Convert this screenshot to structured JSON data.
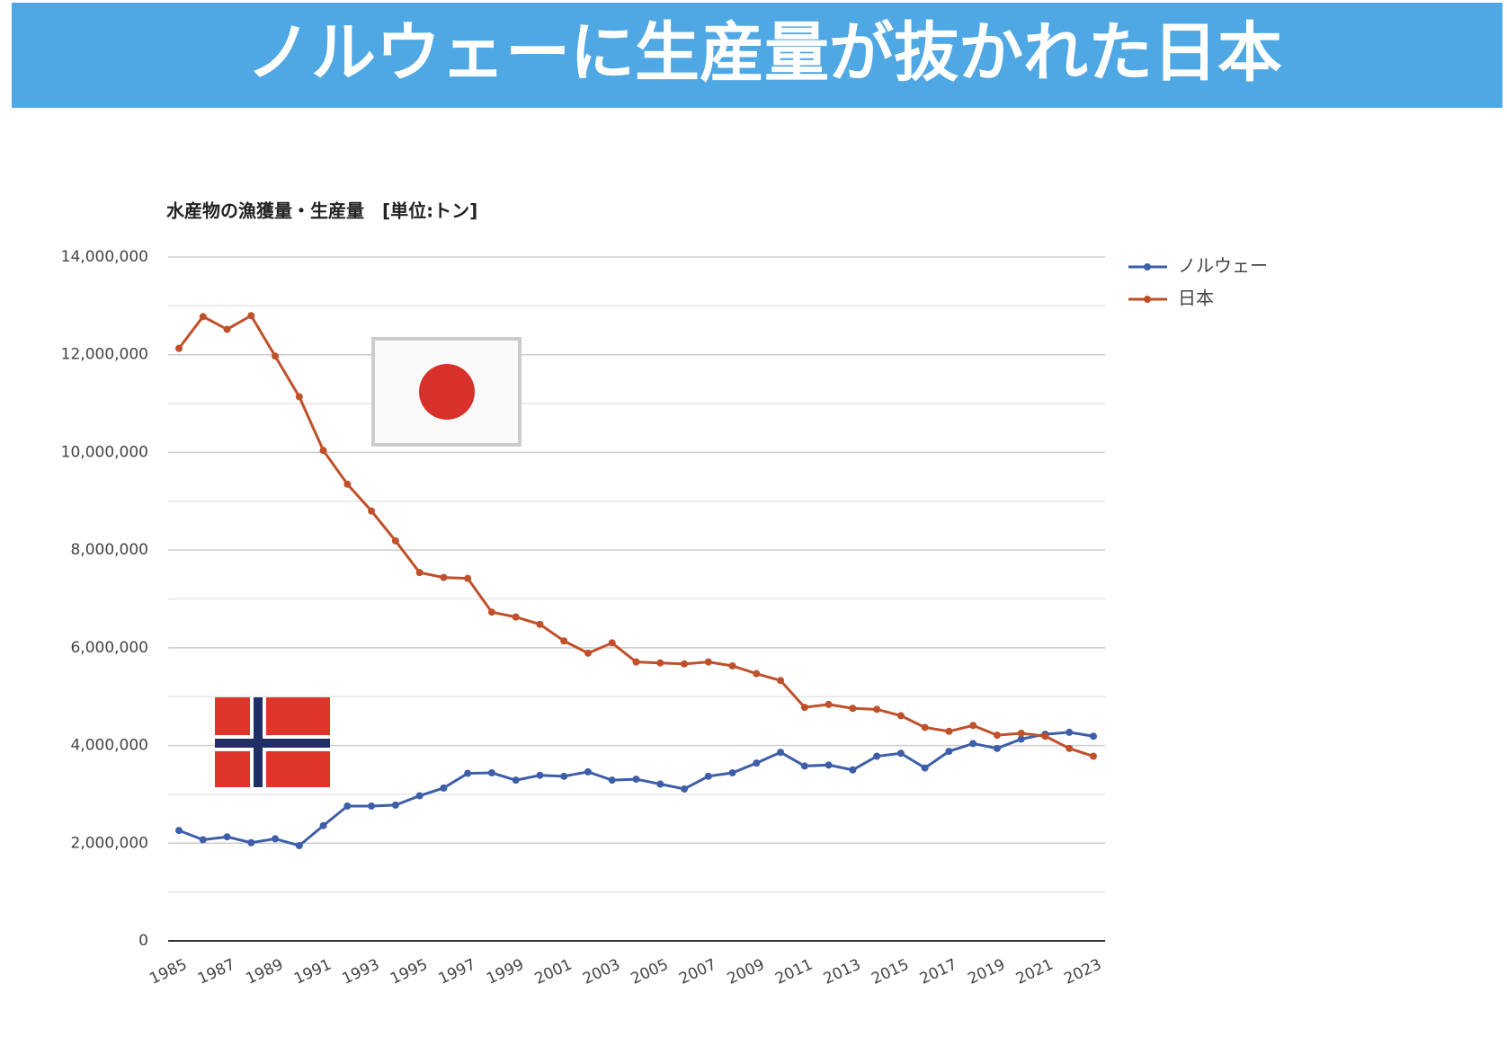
{
  "header": {
    "title": "ノルウェーに生産量が抜かれた日本"
  },
  "chart_data": {
    "type": "line",
    "title": "水産物の漁獲量・生産量　[単位:トン]",
    "x": [
      1985,
      1986,
      1987,
      1988,
      1989,
      1990,
      1991,
      1992,
      1993,
      1994,
      1995,
      1996,
      1997,
      1998,
      1999,
      2000,
      2001,
      2002,
      2003,
      2004,
      2005,
      2006,
      2007,
      2008,
      2009,
      2010,
      2011,
      2012,
      2013,
      2014,
      2015,
      2016,
      2017,
      2018,
      2019,
      2020,
      2021,
      2022,
      2023
    ],
    "xlim": [
      1985,
      2023
    ],
    "xticks": [
      1985,
      1987,
      1989,
      1991,
      1993,
      1995,
      1997,
      1999,
      2001,
      2003,
      2005,
      2007,
      2009,
      2011,
      2013,
      2015,
      2017,
      2019,
      2021,
      2023
    ],
    "ylim": [
      0,
      14000000
    ],
    "yticks": [
      0,
      {
        "value": 2000000,
        "label": "2,000,000"
      },
      {
        "value": 4000000,
        "label": "4,000,000"
      },
      {
        "value": 6000000,
        "label": "6,000,000"
      },
      {
        "value": 8000000,
        "label": "8,000,000"
      },
      {
        "value": 10000000,
        "label": "10,000,000"
      },
      {
        "value": 12000000,
        "label": "12,000,000"
      },
      {
        "value": 14000000,
        "label": "14,000,000"
      }
    ],
    "y_minor_ticks": [
      1000000,
      3000000,
      5000000,
      7000000,
      9000000,
      11000000,
      13000000
    ],
    "grid": true,
    "legend": "right",
    "series": [
      {
        "name": "ノルウェー",
        "color": "#3d5ea8",
        "values": [
          2260000,
          2070000,
          2130000,
          2010000,
          2090000,
          1950000,
          2360000,
          2760000,
          2760000,
          2780000,
          2970000,
          3130000,
          3430000,
          3440000,
          3290000,
          3390000,
          3370000,
          3460000,
          3290000,
          3310000,
          3210000,
          3110000,
          3370000,
          3440000,
          3640000,
          3860000,
          3580000,
          3600000,
          3500000,
          3780000,
          3840000,
          3540000,
          3880000,
          4040000,
          3940000,
          4130000,
          4230000,
          4270000,
          4190000
        ]
      },
      {
        "name": "日本",
        "color": "#c0502a",
        "values": [
          12130000,
          12780000,
          12520000,
          12800000,
          11970000,
          11140000,
          10040000,
          9350000,
          8800000,
          8190000,
          7540000,
          7440000,
          7420000,
          6730000,
          6630000,
          6480000,
          6140000,
          5890000,
          6100000,
          5710000,
          5690000,
          5670000,
          5710000,
          5630000,
          5470000,
          5330000,
          4780000,
          4840000,
          4760000,
          4740000,
          4610000,
          4370000,
          4290000,
          4410000,
          4210000,
          4250000,
          4190000,
          3940000,
          3780000
        ]
      }
    ]
  }
}
